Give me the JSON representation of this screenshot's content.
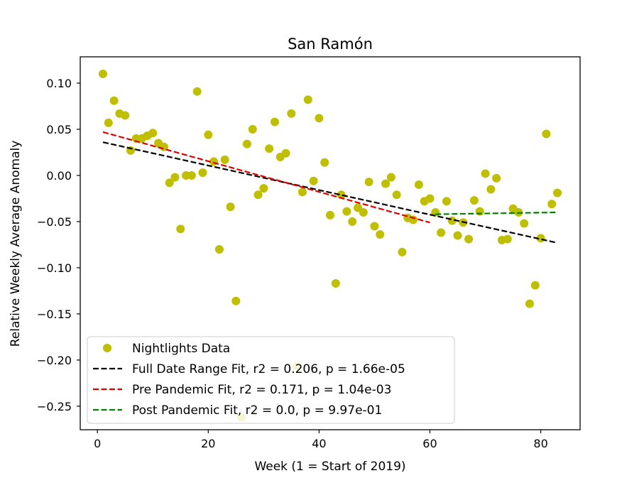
{
  "chart_data": {
    "type": "scatter",
    "title": "San Ramón",
    "xlabel": "Week (1 = Start of 2019)",
    "ylabel": "Relative Weekly Average Anomaly",
    "xlim": [
      -3.1,
      87.1
    ],
    "ylim": [
      -0.2755,
      0.1285
    ],
    "x_ticks": [
      0,
      20,
      40,
      60,
      80
    ],
    "x_tick_labels": [
      "0",
      "20",
      "40",
      "60",
      "80"
    ],
    "y_ticks": [
      0.1,
      0.05,
      0.0,
      -0.05,
      -0.1,
      -0.15,
      -0.2,
      -0.25
    ],
    "y_tick_labels": [
      "0.10",
      "0.05",
      "0.00",
      "−0.05",
      "−0.10",
      "−0.15",
      "−0.20",
      "−0.25"
    ],
    "grid": false,
    "legend_position": "lower-left",
    "series": [
      {
        "name": "Nightlights Data",
        "kind": "scatter",
        "color": "#bfbf00",
        "points": [
          [
            1,
            0.11
          ],
          [
            2,
            0.057
          ],
          [
            3,
            0.081
          ],
          [
            4,
            0.067
          ],
          [
            5,
            0.065
          ],
          [
            6,
            0.027
          ],
          [
            7,
            0.04
          ],
          [
            8,
            0.04
          ],
          [
            9,
            0.043
          ],
          [
            10,
            0.046
          ],
          [
            11,
            0.035
          ],
          [
            12,
            0.031
          ],
          [
            13,
            -0.008
          ],
          [
            14,
            -0.002
          ],
          [
            15,
            -0.058
          ],
          [
            16,
            0.0
          ],
          [
            17,
            0.0
          ],
          [
            18,
            0.091
          ],
          [
            19,
            0.003
          ],
          [
            20,
            0.044
          ],
          [
            21,
            0.015
          ],
          [
            22,
            -0.08
          ],
          [
            23,
            0.017
          ],
          [
            24,
            -0.034
          ],
          [
            25,
            -0.136
          ],
          [
            26,
            -0.262
          ],
          [
            27,
            0.034
          ],
          [
            28,
            0.05
          ],
          [
            29,
            -0.021
          ],
          [
            30,
            -0.014
          ],
          [
            31,
            0.029
          ],
          [
            32,
            0.058
          ],
          [
            33,
            0.02
          ],
          [
            34,
            0.024
          ],
          [
            35,
            0.067
          ],
          [
            36,
            -0.207
          ],
          [
            37,
            -0.018
          ],
          [
            38,
            0.082
          ],
          [
            39,
            -0.006
          ],
          [
            40,
            0.062
          ],
          [
            41,
            0.014
          ],
          [
            42,
            -0.043
          ],
          [
            43,
            -0.117
          ],
          [
            44,
            -0.021
          ],
          [
            45,
            -0.039
          ],
          [
            46,
            -0.05
          ],
          [
            47,
            -0.035
          ],
          [
            48,
            -0.04
          ],
          [
            49,
            -0.007
          ],
          [
            50,
            -0.055
          ],
          [
            51,
            -0.064
          ],
          [
            52,
            -0.009
          ],
          [
            53,
            -0.002
          ],
          [
            54,
            -0.021
          ],
          [
            55,
            -0.083
          ],
          [
            56,
            -0.046
          ],
          [
            57,
            -0.048
          ],
          [
            58,
            -0.01
          ],
          [
            59,
            -0.028
          ],
          [
            60,
            -0.025
          ],
          [
            61,
            -0.04
          ],
          [
            62,
            -0.062
          ],
          [
            63,
            -0.028
          ],
          [
            64,
            -0.049
          ],
          [
            65,
            -0.065
          ],
          [
            66,
            -0.051
          ],
          [
            67,
            -0.069
          ],
          [
            68,
            -0.027
          ],
          [
            69,
            -0.039
          ],
          [
            70,
            0.002
          ],
          [
            71,
            -0.015
          ],
          [
            72,
            -0.003
          ],
          [
            73,
            -0.07
          ],
          [
            74,
            -0.069
          ],
          [
            75,
            -0.036
          ],
          [
            76,
            -0.04
          ],
          [
            77,
            -0.052
          ],
          [
            78,
            -0.139
          ],
          [
            79,
            -0.119
          ],
          [
            80,
            -0.068
          ],
          [
            81,
            0.045
          ],
          [
            82,
            -0.031
          ],
          [
            83,
            -0.019
          ]
        ]
      },
      {
        "name": "Full Date Range Fit, r2 = 0.206, p = 1.66e-05",
        "kind": "dashed-line",
        "color": "#000000",
        "points": [
          [
            1,
            0.036
          ],
          [
            83,
            -0.073
          ]
        ]
      },
      {
        "name": "Pre Pandemic Fit, r2 = 0.171, p = 1.04e-03",
        "kind": "dashed-line",
        "color": "#e00000",
        "points": [
          [
            1,
            0.047
          ],
          [
            60,
            -0.051
          ]
        ]
      },
      {
        "name": "Post Pandemic Fit, r2 = 0.0, p = 9.97e-01",
        "kind": "dashed-line",
        "color": "#008000",
        "points": [
          [
            61,
            -0.042
          ],
          [
            83,
            -0.04
          ]
        ]
      }
    ]
  }
}
